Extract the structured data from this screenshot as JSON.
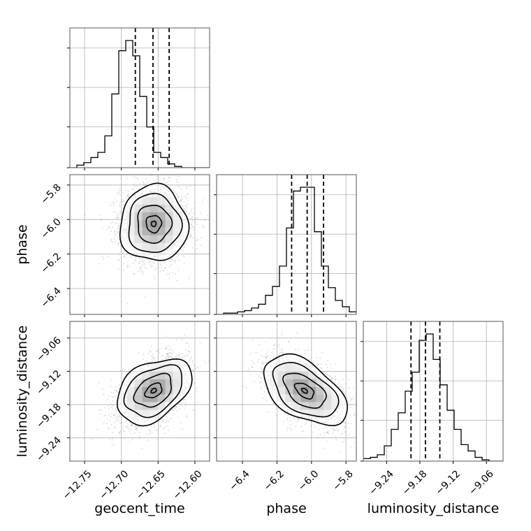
{
  "chart_data": {
    "type": "corner",
    "parameters": [
      "geocent_time",
      "phase",
      "luminosity_distance"
    ],
    "axis_labels": {
      "x": [
        "geocent_time",
        "phase",
        "luminosity_distance"
      ],
      "y": [
        "phase",
        "luminosity_distance"
      ]
    },
    "ranges": {
      "geocent_time": [
        -12.77,
        -12.58
      ],
      "phase": [
        -6.55,
        -5.74
      ],
      "luminosity_distance": [
        -9.282,
        -9.03
      ]
    },
    "ticks": {
      "geocent_time": [
        -12.75,
        -12.7,
        -12.65,
        -12.6
      ],
      "phase": [
        -6.4,
        -6.2,
        -6.0,
        -5.8
      ],
      "luminosity_distance": [
        -9.24,
        -9.18,
        -9.12,
        -9.06
      ]
    },
    "tick_labels": {
      "geocent_time": [
        "−12.75",
        "−12.70",
        "−12.65",
        "−12.60"
      ],
      "phase": [
        "−6.4",
        "−6.2",
        "−6.0",
        "−5.8"
      ],
      "luminosity_distance": [
        "−9.24",
        "−9.18",
        "−9.12",
        "−9.06"
      ]
    },
    "quantiles": {
      "geocent_time": [
        -12.681,
        -12.657,
        -12.635
      ],
      "phase": [
        -6.115,
        -6.025,
        -5.93
      ],
      "luminosity_distance": [
        -9.196,
        -9.17,
        -9.144
      ]
    },
    "histograms": {
      "geocent_time": {
        "edges_range": [
          -12.77,
          -12.58
        ],
        "counts": [
          0,
          2,
          4,
          8,
          12,
          25,
          58,
          92,
          100,
          88,
          56,
          32,
          12,
          8,
          3,
          1,
          0,
          0,
          0,
          0
        ]
      },
      "phase": {
        "edges_range": [
          -6.55,
          -5.74
        ],
        "counts": [
          0,
          1,
          1,
          2,
          3,
          5,
          8,
          15,
          22,
          38,
          68,
          97,
          100,
          100,
          65,
          38,
          21,
          11,
          6,
          2
        ]
      },
      "luminosity_distance": {
        "edges_range": [
          -9.282,
          -9.03
        ],
        "counts": [
          2,
          3,
          5,
          12,
          25,
          38,
          55,
          70,
          95,
          100,
          80,
          60,
          40,
          25,
          13,
          8,
          3,
          1,
          0,
          0
        ]
      }
    },
    "scatter": {
      "phase_vs_geocent_time": {
        "mean": [
          -12.656,
          -6.025
        ],
        "sd": [
          0.023,
          0.11
        ],
        "corr": 0.0
      },
      "luminosity_distance_vs_geocent_time": {
        "mean": [
          -12.656,
          -9.155
        ],
        "sd": [
          0.023,
          0.03
        ],
        "corr": 0.45
      },
      "luminosity_distance_vs_phase": {
        "mean": [
          -6.04,
          -9.155
        ],
        "sd": [
          0.11,
          0.03
        ],
        "corr": -0.5
      }
    },
    "grid": true
  }
}
